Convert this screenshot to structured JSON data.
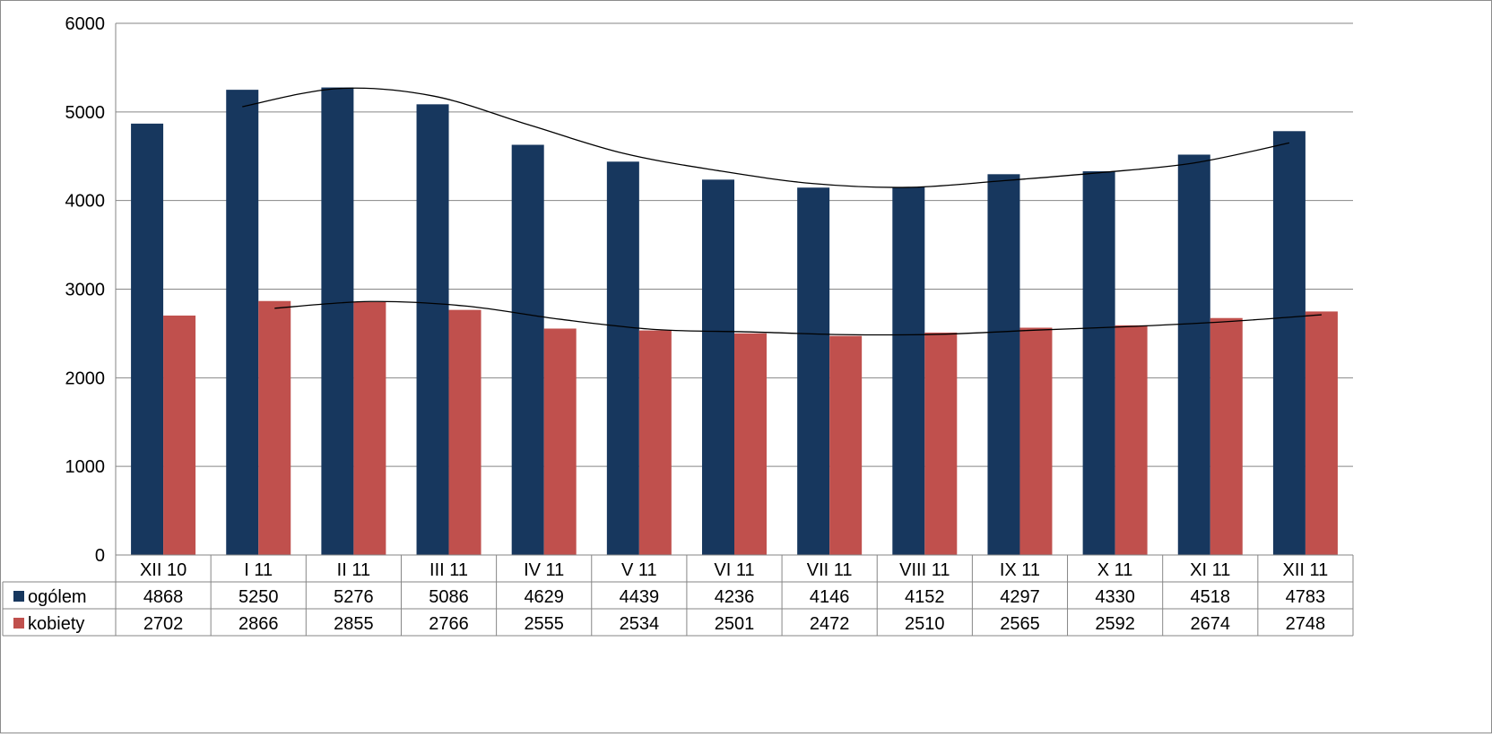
{
  "chart_data": {
    "type": "bar",
    "categories": [
      "XII 10",
      "I 11",
      "II 11",
      "III 11",
      "IV 11",
      "V 11",
      "VI 11",
      "VII 11",
      "VIII 11",
      "IX 11",
      "X 11",
      "XI 11",
      "XII 11"
    ],
    "series": [
      {
        "name": "ogólem",
        "color": "#17375e",
        "values": [
          4868,
          5250,
          5276,
          5086,
          4629,
          4439,
          4236,
          4146,
          4152,
          4297,
          4330,
          4518,
          4783
        ]
      },
      {
        "name": "kobiety",
        "color": "#c0504d",
        "values": [
          2702,
          2866,
          2855,
          2766,
          2555,
          2534,
          2501,
          2472,
          2510,
          2565,
          2592,
          2674,
          2748
        ]
      }
    ],
    "trendlines": [
      {
        "type": "moving-average",
        "period": 2,
        "series": "ogólem",
        "color": "#000000"
      },
      {
        "type": "moving-average",
        "period": 2,
        "series": "kobiety",
        "color": "#000000"
      }
    ],
    "yticks": [
      "0",
      "1000",
      "2000",
      "3000",
      "4000",
      "5000",
      "6000"
    ],
    "ylim": [
      0,
      6000
    ],
    "grid": true,
    "legend": "data-table"
  }
}
